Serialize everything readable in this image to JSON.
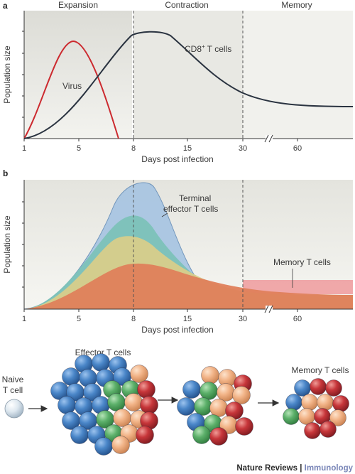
{
  "panel_a": {
    "letter": "a",
    "phases": [
      "Expansion",
      "Contraction",
      "Memory"
    ],
    "ylabel": "Population size",
    "xlabel": "Days post infection",
    "curve_labels": {
      "virus": "Virus",
      "cd8": "CD8",
      "cd8_sup": "+",
      "cd8_suffix": " T cells"
    }
  },
  "panel_b": {
    "letter": "b",
    "ylabel": "Population size",
    "xlabel": "Days post infection",
    "terminal_label_1": "Terminal",
    "terminal_label_2": "effector T cells",
    "memory_label": "Memory T cells"
  },
  "x_ticks": [
    "1",
    "5",
    "8",
    "15",
    "30",
    "60"
  ],
  "cells": {
    "naive_1": "Naive",
    "naive_2": "T cell",
    "effector": "Effector T cells",
    "memory": "Memory T cells"
  },
  "credit": {
    "brand": "Nature Reviews",
    "separator": " | ",
    "topic": "Immunology"
  },
  "colors": {
    "virus": "#cc2a2f",
    "cd8": "#2a3340",
    "terminal": "#a9c6e2",
    "teal": "#7cc2b8",
    "yellow": "#d8ce8a",
    "orange": "#df7f5b",
    "memory_band": "#ee9a9c",
    "cell_blue": "#4a86c8",
    "cell_green": "#5cb06a",
    "cell_peach": "#f2b488",
    "cell_red": "#c7363a",
    "naive": "#dde7ef"
  },
  "chart_data": [
    {
      "type": "line",
      "x": [
        "1",
        "5",
        "8",
        "15",
        "30",
        "60"
      ],
      "series": [
        {
          "name": "Virus",
          "values": [
            0,
            100,
            0,
            null,
            null,
            null
          ]
        },
        {
          "name": "CD8+ T cells",
          "values": [
            0,
            45,
            98,
            80,
            30,
            20
          ]
        }
      ],
      "xlabel": "Days post infection",
      "ylabel": "Population size",
      "annotations": [
        "Expansion",
        "Contraction",
        "Memory"
      ]
    },
    {
      "type": "area",
      "x": [
        "1",
        "5",
        "8",
        "15",
        "30",
        "60"
      ],
      "series": [
        {
          "name": "Terminal effector T cells",
          "values": [
            0,
            30,
            100,
            55,
            0,
            0
          ]
        },
        {
          "name": "Memory T cells",
          "values": [
            0,
            15,
            35,
            28,
            16,
            15
          ]
        }
      ],
      "xlabel": "Days post infection",
      "ylabel": "Population size"
    }
  ]
}
